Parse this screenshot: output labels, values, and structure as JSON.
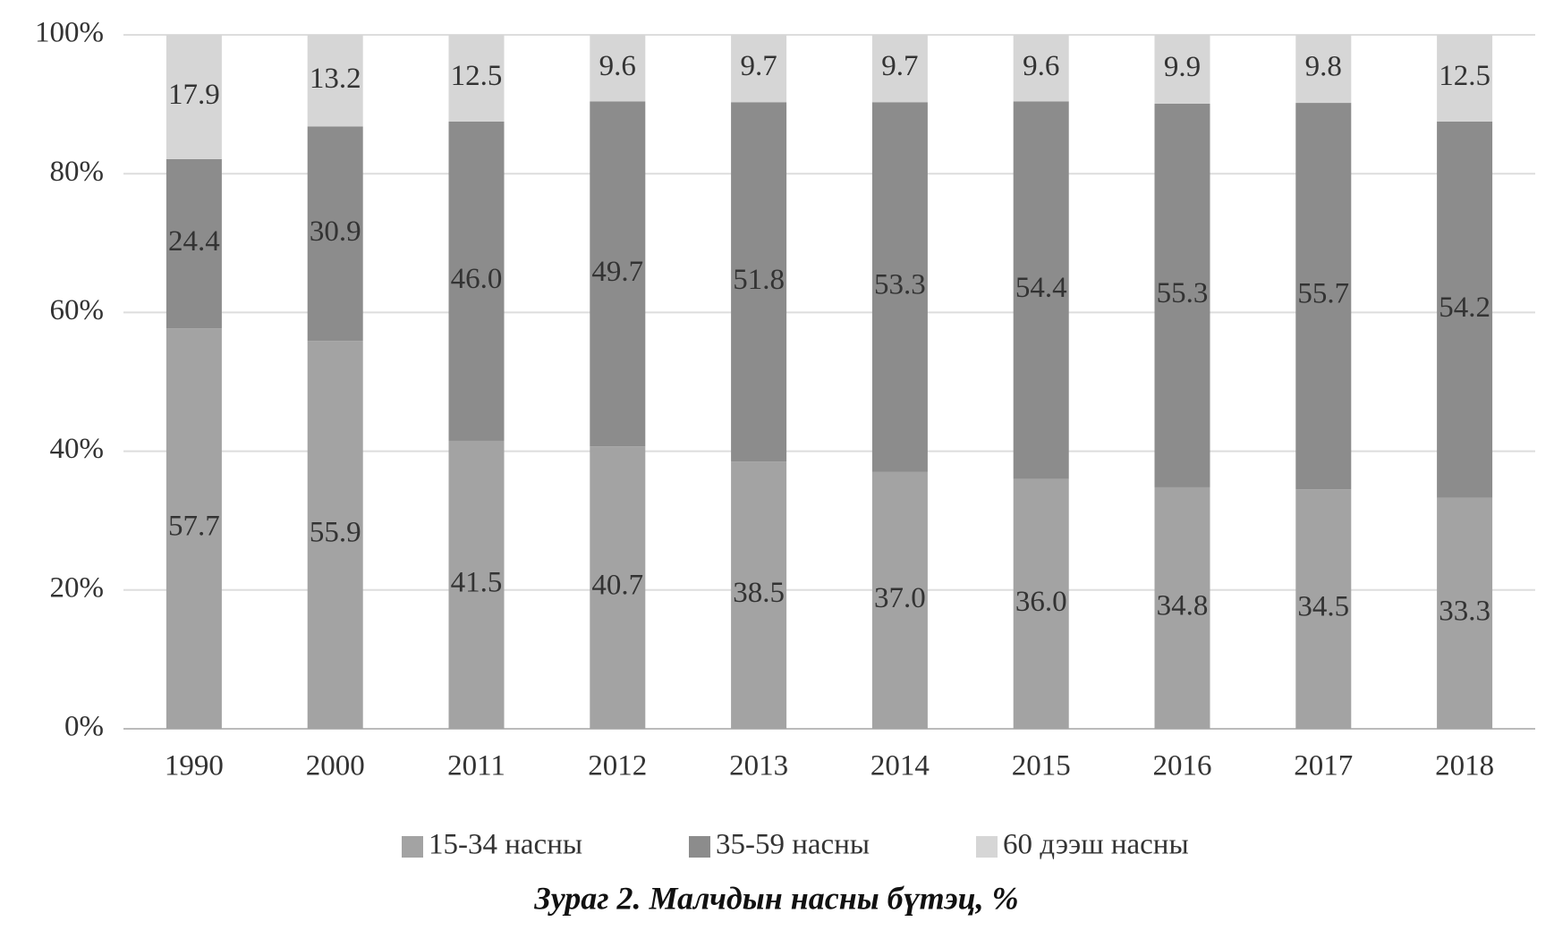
{
  "chart_data": {
    "type": "stacked_bar",
    "caption": "Зураг 2. Малчдын насны бүтэц, %",
    "categories": [
      "1990",
      "2000",
      "2011",
      "2012",
      "2013",
      "2014",
      "2015",
      "2016",
      "2017",
      "2018"
    ],
    "series": [
      {
        "name": "15-34 насны",
        "color": "#a3a3a3",
        "values": [
          57.7,
          55.9,
          41.5,
          40.7,
          38.5,
          37.0,
          36.0,
          34.8,
          34.5,
          33.3
        ],
        "value_labels": [
          "57.7",
          "55.9",
          "41.5",
          "40.7",
          "38.5",
          "37.0",
          "36.0",
          "34.8",
          "34.5",
          "33.3"
        ]
      },
      {
        "name": "35-59 насны",
        "color": "#8c8c8c",
        "values": [
          24.4,
          30.9,
          46.0,
          49.7,
          51.8,
          53.3,
          54.4,
          55.3,
          55.7,
          54.2
        ],
        "value_labels": [
          "24.4",
          "30.9",
          "46.0",
          "49.7",
          "51.8",
          "53.3",
          "54.4",
          "55.3",
          "55.7",
          "54.2"
        ]
      },
      {
        "name": "60 дээш насны",
        "color": "#d6d6d6",
        "values": [
          17.9,
          13.2,
          12.5,
          9.6,
          9.7,
          9.7,
          9.6,
          9.9,
          9.8,
          12.5
        ],
        "value_labels": [
          "17.9",
          "13.2",
          "12.5",
          "9.6",
          "9.7",
          "9.7",
          "9.6",
          "9.9",
          "9.8",
          "12.5"
        ]
      }
    ],
    "ylim": [
      0,
      100
    ],
    "yticks": [
      {
        "value": 0,
        "label": "0%"
      },
      {
        "value": 20,
        "label": "20%"
      },
      {
        "value": 40,
        "label": "40%"
      },
      {
        "value": 60,
        "label": "60%"
      },
      {
        "value": 80,
        "label": "80%"
      },
      {
        "value": 100,
        "label": "100%"
      }
    ],
    "grid": true,
    "legend": "bottom"
  }
}
